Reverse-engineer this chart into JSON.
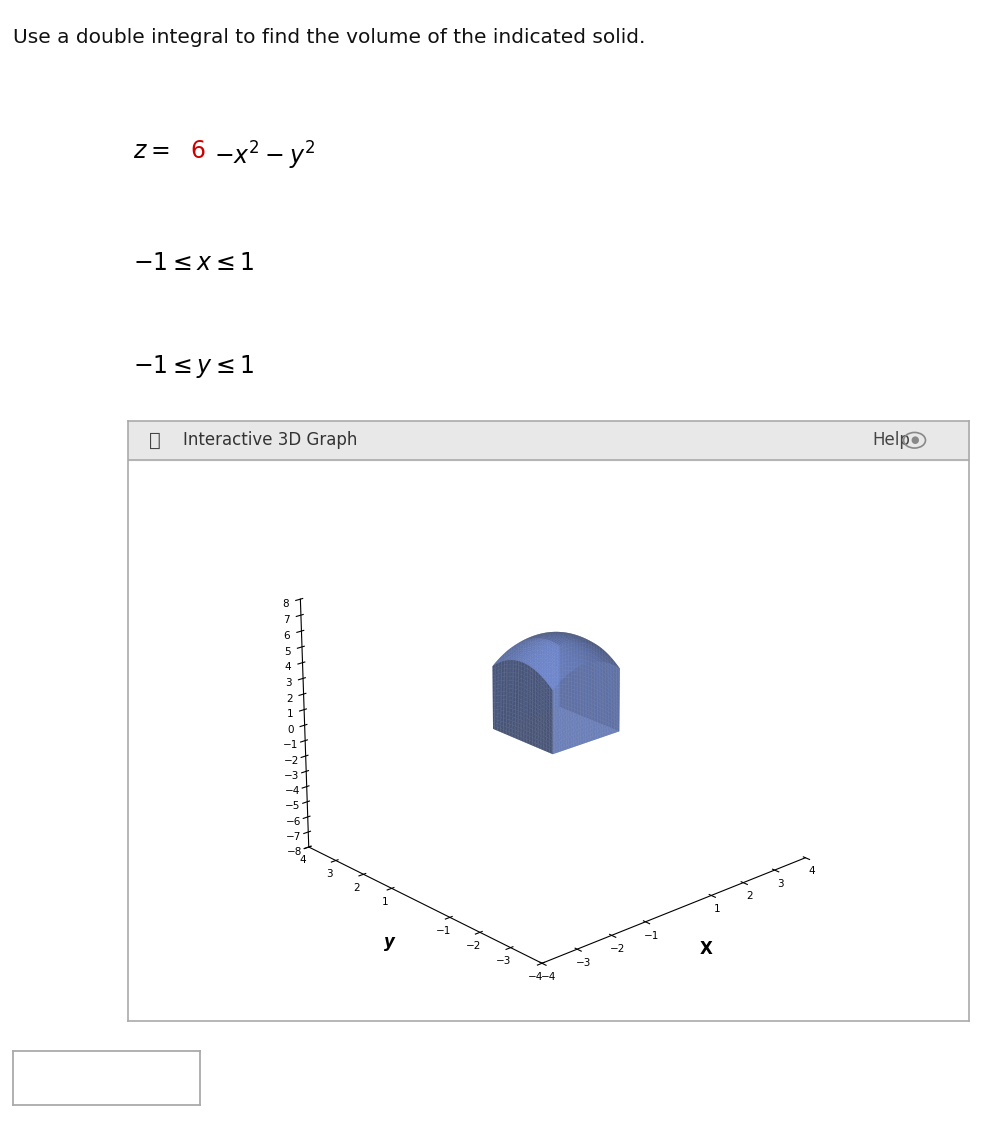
{
  "title_text": "Use a double integral to find the volume of the indicated solid.",
  "eq_6_color": "#cc0000",
  "constraint1": "−1 ≤ x ≤ 1",
  "constraint2": "−1 ≤ y ≤ 1",
  "graph_label": "Interactive 3D Graph",
  "help_label": "● Help",
  "surface_color": "#6680cc",
  "surface_alpha": 0.8,
  "elev": 22,
  "azim": -132,
  "bg_color": "#ffffff",
  "graph_bg": "#ffffff",
  "header_bg": "#e8e8e8",
  "border_color": "#aaaaaa"
}
